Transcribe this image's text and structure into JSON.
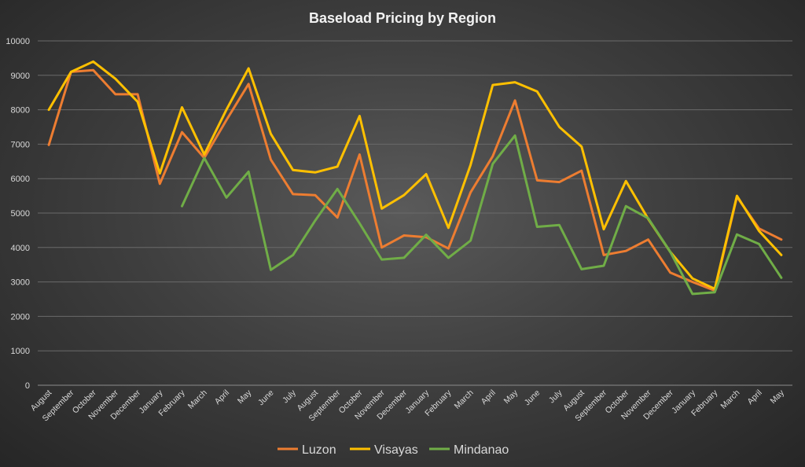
{
  "chart_data": {
    "type": "line",
    "title": "Baseload Pricing by Region",
    "xlabel": "",
    "ylabel": "",
    "ylim": [
      0,
      10000
    ],
    "yticks": [
      0,
      1000,
      2000,
      3000,
      4000,
      5000,
      6000,
      7000,
      8000,
      9000,
      10000
    ],
    "grid": true,
    "legend_position": "bottom",
    "categories": [
      "August",
      "September",
      "October",
      "November",
      "December",
      "January",
      "February",
      "March",
      "April",
      "May",
      "June",
      "July",
      "August",
      "September",
      "October",
      "November",
      "December",
      "January",
      "February",
      "March",
      "April",
      "May",
      "June",
      "July",
      "August",
      "September",
      "October",
      "November",
      "December",
      "January",
      "February",
      "March",
      "April",
      "May"
    ],
    "series": [
      {
        "name": "Luzon",
        "color": "#ED7D31",
        "values": [
          6980,
          9100,
          9150,
          8450,
          8450,
          5850,
          7350,
          6600,
          7700,
          8750,
          6550,
          5550,
          5520,
          4870,
          6700,
          4000,
          4350,
          4300,
          3970,
          5600,
          6650,
          8270,
          5950,
          5900,
          6230,
          3780,
          3900,
          4230,
          3270,
          3000,
          2750,
          5470,
          4550,
          4230
        ]
      },
      {
        "name": "Visayas",
        "color": "#FFC000",
        "values": [
          8000,
          9100,
          9400,
          8900,
          8230,
          6150,
          8070,
          6700,
          8000,
          9200,
          7300,
          6250,
          6180,
          6350,
          7820,
          5130,
          5520,
          6130,
          4570,
          6400,
          8720,
          8800,
          8530,
          7500,
          6930,
          4530,
          5930,
          4830,
          3870,
          3100,
          2800,
          5500,
          4480,
          3780
        ]
      },
      {
        "name": "Mindanao",
        "color": "#70AD47",
        "values": [
          null,
          null,
          null,
          null,
          null,
          null,
          5200,
          6600,
          5450,
          6200,
          3350,
          3780,
          4780,
          5700,
          4700,
          3650,
          3700,
          4370,
          3700,
          4200,
          6430,
          7250,
          4600,
          4650,
          3370,
          3470,
          5200,
          4850,
          3870,
          2650,
          2700,
          4380,
          4100,
          3120
        ]
      }
    ]
  }
}
